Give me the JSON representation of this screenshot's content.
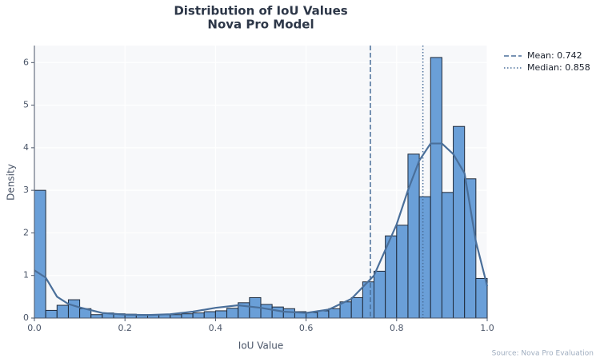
{
  "chart_data": {
    "type": "histogram",
    "title": "Distribution of IoU Values",
    "subtitle": "Nova Pro Model",
    "x_label": "IoU Value",
    "y_label": "Density",
    "source": "Source: Nova Pro Evaluation",
    "bins": [
      0,
      0.025,
      0.05,
      0.075,
      0.1,
      0.125,
      0.15,
      0.175,
      0.2,
      0.225,
      0.25,
      0.275,
      0.3,
      0.325,
      0.35,
      0.375,
      0.4,
      0.425,
      0.45,
      0.475,
      0.5,
      0.525,
      0.55,
      0.575,
      0.6,
      0.625,
      0.65,
      0.675,
      0.7,
      0.725,
      0.75,
      0.775,
      0.8,
      0.825,
      0.85,
      0.875,
      0.9,
      0.925,
      0.95,
      0.975,
      1.0
    ],
    "values": [
      3.0,
      0.18,
      0.3,
      0.43,
      0.22,
      0.08,
      0.12,
      0.1,
      0.09,
      0.08,
      0.08,
      0.08,
      0.08,
      0.1,
      0.12,
      0.15,
      0.17,
      0.23,
      0.36,
      0.48,
      0.32,
      0.26,
      0.22,
      0.15,
      0.13,
      0.17,
      0.22,
      0.38,
      0.48,
      0.85,
      1.1,
      1.93,
      2.18,
      3.85,
      2.85,
      6.12,
      2.95,
      4.5,
      3.27,
      0.93
    ],
    "color": "#6a9fd8",
    "edge_color": "#1f2a3a",
    "kde": {
      "color": "#4a6f9a",
      "x": [
        0,
        0.025,
        0.05,
        0.075,
        0.1,
        0.15,
        0.2,
        0.25,
        0.3,
        0.35,
        0.4,
        0.45,
        0.5,
        0.55,
        0.6,
        0.65,
        0.7,
        0.75,
        0.8,
        0.825,
        0.85,
        0.875,
        0.9,
        0.925,
        0.95,
        0.975,
        1.0
      ],
      "values": [
        1.12,
        0.95,
        0.5,
        0.33,
        0.25,
        0.12,
        0.08,
        0.07,
        0.09,
        0.15,
        0.24,
        0.3,
        0.24,
        0.15,
        0.12,
        0.2,
        0.45,
        1.0,
        2.2,
        3.0,
        3.7,
        4.1,
        4.1,
        3.85,
        3.4,
        1.8,
        0.75
      ]
    },
    "reference_lines": [
      {
        "label": "Mean: 0.742",
        "value": 0.742,
        "style": "dashed",
        "color": "#4a6f9a"
      },
      {
        "label": "Median: 0.858",
        "value": 0.858,
        "style": "dotted",
        "color": "#4a6f9a"
      }
    ],
    "xlim": [
      0,
      1
    ],
    "ylim": [
      0,
      6.4
    ],
    "xticks": [
      {
        "value": 0,
        "label": "0.0"
      },
      {
        "value": 0.2,
        "label": "0.2"
      },
      {
        "value": 0.4,
        "label": "0.4"
      },
      {
        "value": 0.6,
        "label": "0.6"
      },
      {
        "value": 0.8,
        "label": "0.8"
      },
      {
        "value": 1.0,
        "label": "1.0"
      }
    ],
    "yticks": [
      0,
      1,
      2,
      3,
      4,
      5,
      6
    ],
    "grid": true
  }
}
